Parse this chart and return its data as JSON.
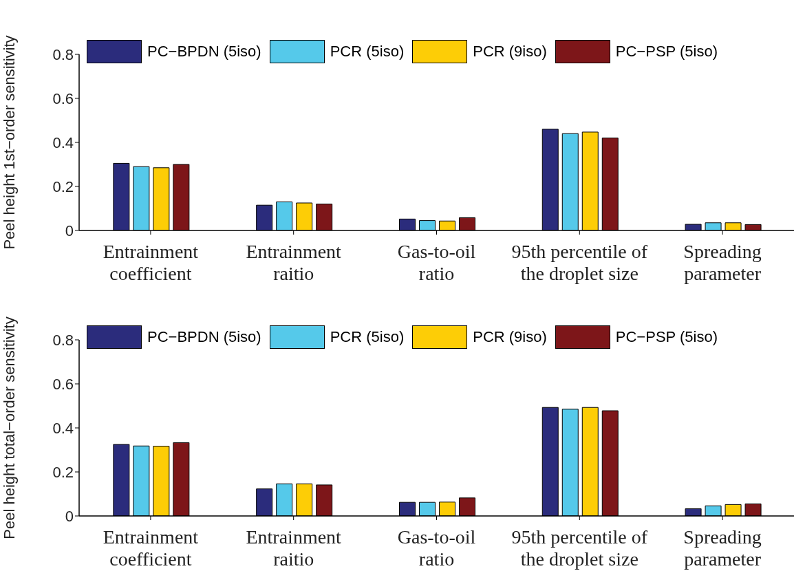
{
  "chart_data": [
    {
      "type": "bar",
      "ylabel": "Peel height 1st−order sensitivity",
      "categories": [
        "Entrainment\ncoefficient",
        "Entrainment\nraitio",
        "Gas-to-oil\nratio",
        "95th percentile of\nthe droplet size",
        "Spreading\nparameter"
      ],
      "series": [
        {
          "name": "PC−BPDN (5iso)",
          "color": "#2b2c7c",
          "values": [
            0.305,
            0.115,
            0.052,
            0.46,
            0.028
          ]
        },
        {
          "name": "PCR (5iso)",
          "color": "#55c9ea",
          "values": [
            0.29,
            0.13,
            0.045,
            0.44,
            0.035
          ]
        },
        {
          "name": "PCR (9iso)",
          "color": "#fdcd06",
          "values": [
            0.285,
            0.125,
            0.043,
            0.447,
            0.035
          ]
        },
        {
          "name": "PC−PSP (5iso)",
          "color": "#7d1619",
          "values": [
            0.3,
            0.12,
            0.058,
            0.42,
            0.027
          ]
        }
      ],
      "ylim": [
        0,
        0.8
      ],
      "yticks": [
        0,
        0.2,
        0.4,
        0.6,
        0.8
      ],
      "grid": false,
      "legend": "top"
    },
    {
      "type": "bar",
      "ylabel": "Peel height total−order sensitivity",
      "categories": [
        "Entrainment\ncoefficient",
        "Entrainment\nraitio",
        "Gas-to-oil\nratio",
        "95th percentile of\nthe droplet size",
        "Spreading\nparameter"
      ],
      "series": [
        {
          "name": "PC−BPDN (5iso)",
          "color": "#2b2c7c",
          "values": [
            0.325,
            0.123,
            0.062,
            0.493,
            0.033
          ]
        },
        {
          "name": "PCR (5iso)",
          "color": "#55c9ea",
          "values": [
            0.318,
            0.146,
            0.062,
            0.485,
            0.046
          ]
        },
        {
          "name": "PCR (9iso)",
          "color": "#fdcd06",
          "values": [
            0.317,
            0.146,
            0.063,
            0.493,
            0.052
          ]
        },
        {
          "name": "PC−PSP (5iso)",
          "color": "#7d1619",
          "values": [
            0.333,
            0.141,
            0.082,
            0.478,
            0.055
          ]
        }
      ],
      "ylim": [
        0,
        0.8
      ],
      "yticks": [
        0,
        0.2,
        0.4,
        0.6,
        0.8
      ],
      "grid": false,
      "legend": "top"
    }
  ]
}
